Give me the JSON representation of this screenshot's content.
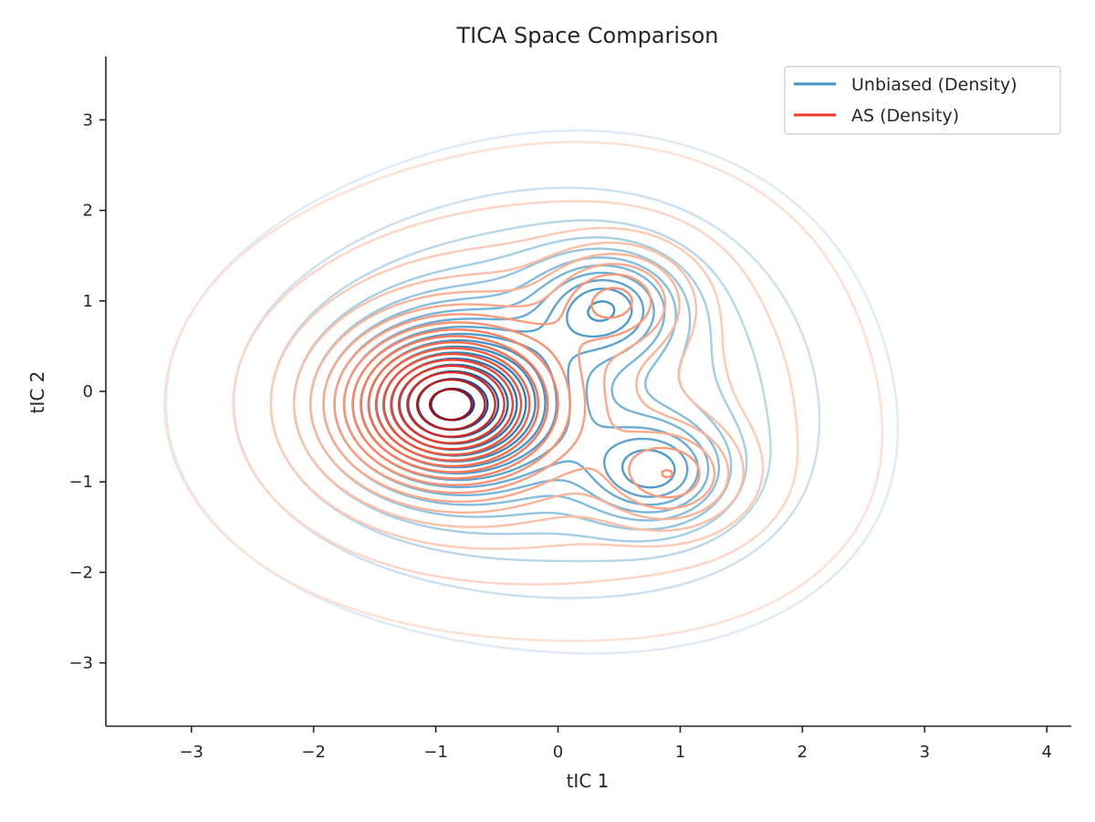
{
  "chart_data": {
    "type": "contour",
    "title": "TICA Space Comparison",
    "xlabel": "tIC 1",
    "ylabel": "tIC 2",
    "xlim": [
      -3.7,
      4.2
    ],
    "ylim": [
      -3.7,
      3.7
    ],
    "xticks": [
      -3,
      -2,
      -1,
      0,
      1,
      2,
      3,
      4
    ],
    "yticks": [
      -3,
      -2,
      -1,
      0,
      1,
      2,
      3
    ],
    "xtick_labels": [
      "−3",
      "−2",
      "−1",
      "0",
      "1",
      "2",
      "3",
      "4"
    ],
    "ytick_labels": [
      "−3",
      "−2",
      "−1",
      "0",
      "1",
      "2",
      "3"
    ],
    "legend_position": "top-right",
    "grid": false,
    "series": [
      {
        "name": "Unbiased (Density)",
        "color": "#4292c6",
        "colormap": "Blues",
        "peaks": [
          {
            "x": -0.9,
            "y": -0.15,
            "weight": 1.0
          },
          {
            "x": 0.4,
            "y": 0.95,
            "weight": 0.5
          },
          {
            "x": 0.8,
            "y": -0.9,
            "weight": 0.5
          }
        ]
      },
      {
        "name": "AS (Density)",
        "color": "#ef3b2c",
        "colormap": "Reds",
        "peaks": [
          {
            "x": -0.9,
            "y": -0.15,
            "weight": 1.0
          },
          {
            "x": 0.5,
            "y": 1.05,
            "weight": 0.35
          },
          {
            "x": 0.95,
            "y": -0.95,
            "weight": 0.35
          }
        ]
      }
    ]
  }
}
